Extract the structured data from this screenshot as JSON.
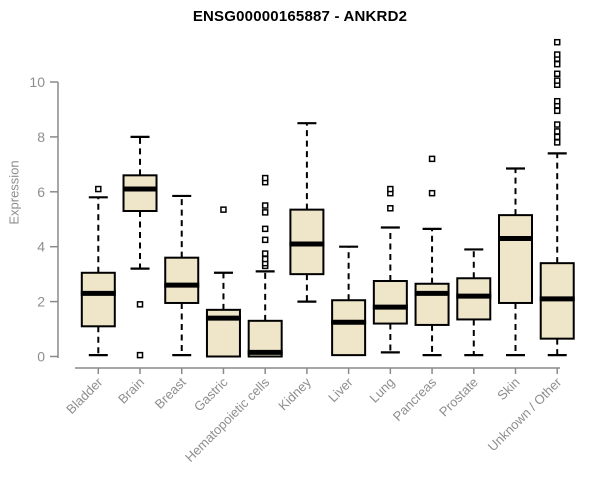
{
  "page": {
    "background": "#ffffff"
  },
  "chart_data": {
    "type": "boxplot",
    "title": "ENSG00000165887 - ANKRD2",
    "ylabel": "Expression",
    "xlabel": "",
    "ylim": [
      0,
      11.6
    ],
    "y_ticks": [
      0,
      2,
      4,
      6,
      8,
      10
    ],
    "grid": false,
    "legend": null,
    "axis_line_color": "#8a8a8a",
    "axis_text_color": "#8e8e8e",
    "box_fill": "#EFE6C9",
    "box_stroke": "#000000",
    "categories": [
      "Bladder",
      "Brain",
      "Breast",
      "Gastric",
      "Hematopoietic cells",
      "Kidney",
      "Liver",
      "Lung",
      "Pancreas",
      "Prostate",
      "Skin",
      "Unknown / Other"
    ],
    "boxes": [
      {
        "label": "Bladder",
        "low": 0.05,
        "q1": 1.1,
        "median": 2.3,
        "q3": 3.05,
        "high": 5.8,
        "outliers": [
          6.1
        ]
      },
      {
        "label": "Brain",
        "low": 3.2,
        "q1": 5.3,
        "median": 6.1,
        "q3": 6.6,
        "high": 8.0,
        "outliers": [
          1.9,
          0.05
        ]
      },
      {
        "label": "Breast",
        "low": 0.05,
        "q1": 1.95,
        "median": 2.6,
        "q3": 3.6,
        "high": 5.85,
        "outliers": []
      },
      {
        "label": "Gastric",
        "low": 0.0,
        "q1": 0.0,
        "median": 1.4,
        "q3": 1.7,
        "high": 3.05,
        "outliers": [
          5.35
        ]
      },
      {
        "label": "Hematopoietic cells",
        "low": 0.0,
        "q1": 0.0,
        "median": 0.15,
        "q3": 1.3,
        "high": 3.1,
        "outliers": [
          3.3,
          3.4,
          3.55,
          3.75,
          4.25,
          4.65,
          5.25,
          5.5,
          6.35,
          6.5
        ]
      },
      {
        "label": "Kidney",
        "low": 2.0,
        "q1": 3.0,
        "median": 4.1,
        "q3": 5.35,
        "high": 8.5,
        "outliers": []
      },
      {
        "label": "Liver",
        "low": 0.05,
        "q1": 0.05,
        "median": 1.25,
        "q3": 2.05,
        "high": 4.0,
        "outliers": []
      },
      {
        "label": "Lung",
        "low": 0.15,
        "q1": 1.2,
        "median": 1.8,
        "q3": 2.75,
        "high": 4.7,
        "outliers": [
          5.4,
          5.95,
          6.1
        ]
      },
      {
        "label": "Pancreas",
        "low": 0.05,
        "q1": 1.15,
        "median": 2.3,
        "q3": 2.65,
        "high": 4.65,
        "outliers": [
          5.95,
          7.2
        ]
      },
      {
        "label": "Prostate",
        "low": 0.05,
        "q1": 1.35,
        "median": 2.2,
        "q3": 2.85,
        "high": 3.9,
        "outliers": []
      },
      {
        "label": "Skin",
        "low": 0.05,
        "q1": 1.95,
        "median": 4.3,
        "q3": 5.15,
        "high": 6.85,
        "outliers": []
      },
      {
        "label": "Unknown / Other",
        "low": 0.05,
        "q1": 0.65,
        "median": 2.1,
        "q3": 3.4,
        "high": 7.4,
        "outliers": [
          7.8,
          8.0,
          8.2,
          8.45,
          8.95,
          9.15,
          9.3,
          9.9,
          10.05,
          10.3,
          10.65,
          10.85,
          11.0,
          11.45
        ]
      }
    ]
  }
}
